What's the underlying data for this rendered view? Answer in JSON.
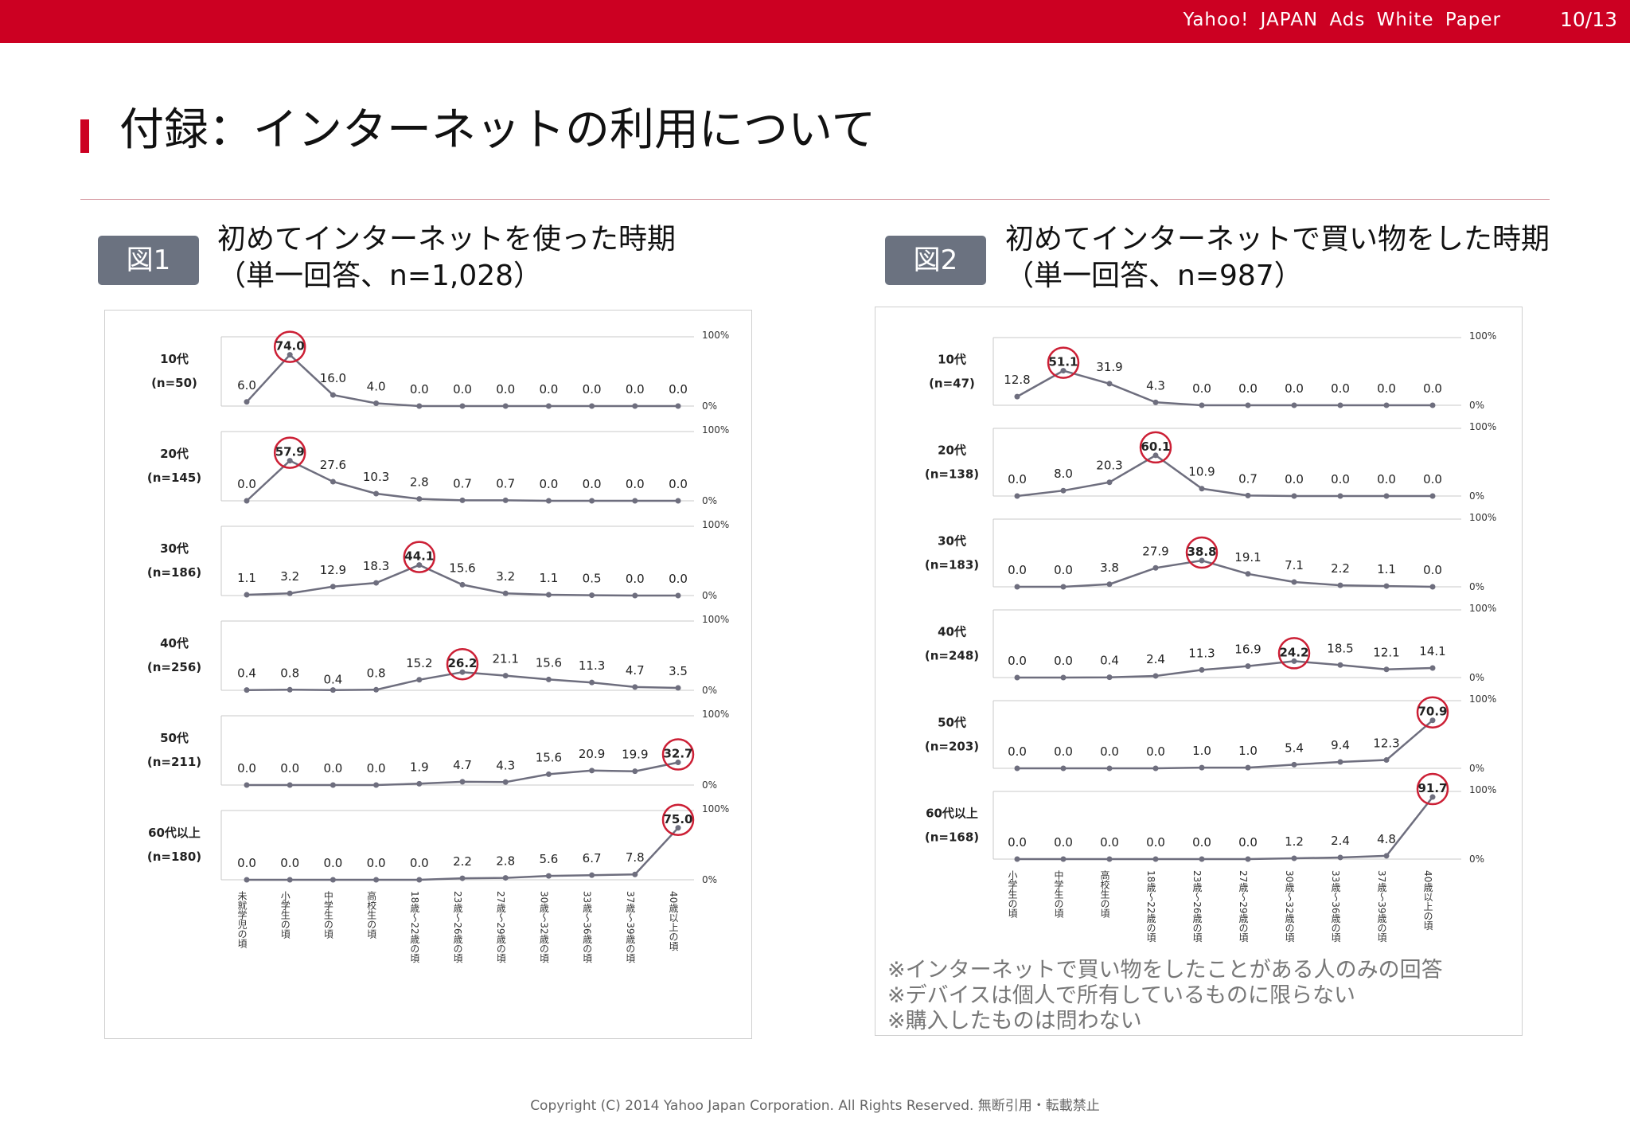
{
  "header": {
    "brand": "Yahoo!  JAPAN  Ads  White  Paper",
    "page": "10/13"
  },
  "page_title": "付録：インターネットの利用について",
  "copyright": "Copyright (C) 2014 Yahoo Japan Corporation. All Rights Reserved. 無断引用・転載禁止",
  "notes": [
    "※インターネットで買い物をしたことがある人のみの回答",
    "※デバイスは個人で所有しているものに限らない",
    "※購入したものは問わない"
  ],
  "colors": {
    "accent": "#cc0022",
    "line": "#6e6e7e",
    "highlight": "#cc1f35",
    "badge": "#6b7280"
  },
  "figures": [
    {
      "badge": "図1",
      "title_line1": "初めてインターネットを使った時期",
      "title_line2": "（単一回答、n=1,028）"
    },
    {
      "badge": "図2",
      "title_line1": "初めてインターネットで買い物をした時期",
      "title_line2": "（単一回答、n=987）"
    }
  ],
  "chart_data": [
    {
      "type": "line",
      "y_top_label": "100%",
      "y_bottom_label": "0%",
      "ylim": [
        0,
        100
      ],
      "categories": [
        "未就学児の頃",
        "小学生の頃",
        "中学生の頃",
        "高校生の頃",
        "18歳～22歳の頃",
        "23歳～26歳の頃",
        "27歳～29歳の頃",
        "30歳～32歳の頃",
        "33歳～36歳の頃",
        "37歳～39歳の頃",
        "40歳以上の頃"
      ],
      "series": [
        {
          "name": "10代",
          "n": "(n=50)",
          "values": [
            "6.0",
            "74.0",
            "16.0",
            "4.0",
            "0.0",
            "0.0",
            "0.0",
            "0.0",
            "0.0",
            "0.0",
            "0.0"
          ],
          "peak": 1
        },
        {
          "name": "20代",
          "n": "(n=145)",
          "values": [
            "0.0",
            "57.9",
            "27.6",
            "10.3",
            "2.8",
            "0.7",
            "0.7",
            "0.0",
            "0.0",
            "0.0",
            "0.0"
          ],
          "peak": 1
        },
        {
          "name": "30代",
          "n": "(n=186)",
          "values": [
            "1.1",
            "3.2",
            "12.9",
            "18.3",
            "44.1",
            "15.6",
            "3.2",
            "1.1",
            "0.5",
            "0.0",
            "0.0"
          ],
          "peak": 4
        },
        {
          "name": "40代",
          "n": "(n=256)",
          "values": [
            "0.4",
            "0.8",
            "0.4",
            "0.8",
            "15.2",
            "26.2",
            "21.1",
            "15.6",
            "11.3",
            "4.7",
            "3.5"
          ],
          "peak": 5
        },
        {
          "name": "50代",
          "n": "(n=211)",
          "values": [
            "0.0",
            "0.0",
            "0.0",
            "0.0",
            "1.9",
            "4.7",
            "4.3",
            "15.6",
            "20.9",
            "19.9",
            "32.7"
          ],
          "peak": 10
        },
        {
          "name": "60代以上",
          "n": "(n=180)",
          "values": [
            "0.0",
            "0.0",
            "0.0",
            "0.0",
            "0.0",
            "2.2",
            "2.8",
            "5.6",
            "6.7",
            "7.8",
            "75.0"
          ],
          "peak": 10
        }
      ]
    },
    {
      "type": "line",
      "y_top_label": "100%",
      "y_bottom_label": "0%",
      "ylim": [
        0,
        100
      ],
      "categories": [
        "小学生の頃",
        "中学生の頃",
        "高校生の頃",
        "18歳～22歳の頃",
        "23歳～26歳の頃",
        "27歳～29歳の頃",
        "30歳～32歳の頃",
        "33歳～36歳の頃",
        "37歳～39歳の頃",
        "40歳以上の頃"
      ],
      "series": [
        {
          "name": "10代",
          "n": "(n=47)",
          "values": [
            "12.8",
            "51.1",
            "31.9",
            "4.3",
            "0.0",
            "0.0",
            "0.0",
            "0.0",
            "0.0",
            "0.0"
          ],
          "peak": 1
        },
        {
          "name": "20代",
          "n": "(n=138)",
          "values": [
            "0.0",
            "8.0",
            "20.3",
            "60.1",
            "10.9",
            "0.7",
            "0.0",
            "0.0",
            "0.0",
            "0.0"
          ],
          "peak": 3
        },
        {
          "name": "30代",
          "n": "(n=183)",
          "values": [
            "0.0",
            "0.0",
            "3.8",
            "27.9",
            "38.8",
            "19.1",
            "7.1",
            "2.2",
            "1.1",
            "0.0"
          ],
          "peak": 4
        },
        {
          "name": "40代",
          "n": "(n=248)",
          "values": [
            "0.0",
            "0.0",
            "0.4",
            "2.4",
            "11.3",
            "16.9",
            "24.2",
            "18.5",
            "12.1",
            "14.1"
          ],
          "peak": 6
        },
        {
          "name": "50代",
          "n": "(n=203)",
          "values": [
            "0.0",
            "0.0",
            "0.0",
            "0.0",
            "1.0",
            "1.0",
            "5.4",
            "9.4",
            "12.3",
            "70.9"
          ],
          "peak": 9
        },
        {
          "name": "60代以上",
          "n": "(n=168)",
          "values": [
            "0.0",
            "0.0",
            "0.0",
            "0.0",
            "0.0",
            "0.0",
            "1.2",
            "2.4",
            "4.8",
            "91.7"
          ],
          "peak": 9
        }
      ]
    }
  ]
}
